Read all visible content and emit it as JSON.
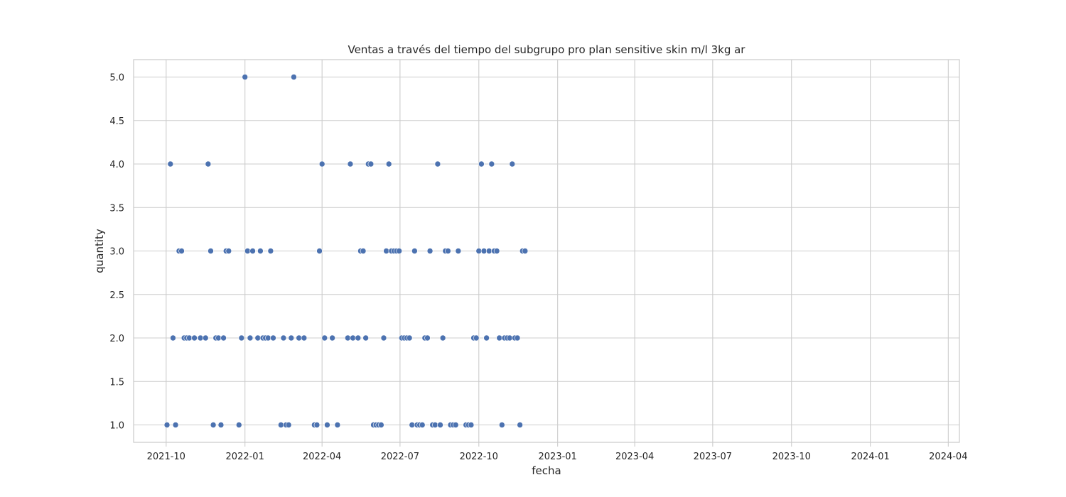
{
  "chart_data": {
    "type": "scatter",
    "title": "Ventas a través del tiempo del subgrupo pro plan sensitive skin m/l 3kg ar",
    "xlabel": "fecha",
    "ylabel": "quantity",
    "x_ticks": [
      "2021-10",
      "2022-01",
      "2022-04",
      "2022-07",
      "2022-10",
      "2023-01",
      "2023-04",
      "2023-07",
      "2023-10",
      "2024-01",
      "2024-04"
    ],
    "y_ticks": [
      "1.0",
      "1.5",
      "2.0",
      "2.5",
      "3.0",
      "3.5",
      "4.0",
      "4.5",
      "5.0"
    ],
    "xlim": [
      "2021-08-24",
      "2024-04-14"
    ],
    "ylim": [
      0.8,
      5.2
    ],
    "grid": true,
    "marker_color": "#4c72b0",
    "points": [
      {
        "x": "2021-10-02",
        "y": 1
      },
      {
        "x": "2021-10-06",
        "y": 4
      },
      {
        "x": "2021-10-09",
        "y": 2
      },
      {
        "x": "2021-10-12",
        "y": 1
      },
      {
        "x": "2021-10-16",
        "y": 3
      },
      {
        "x": "2021-10-19",
        "y": 3
      },
      {
        "x": "2021-10-22",
        "y": 2
      },
      {
        "x": "2021-10-25",
        "y": 2
      },
      {
        "x": "2021-10-28",
        "y": 2
      },
      {
        "x": "2021-11-03",
        "y": 2
      },
      {
        "x": "2021-11-10",
        "y": 2
      },
      {
        "x": "2021-11-16",
        "y": 2
      },
      {
        "x": "2021-11-19",
        "y": 4
      },
      {
        "x": "2021-11-22",
        "y": 3
      },
      {
        "x": "2021-11-25",
        "y": 1
      },
      {
        "x": "2021-11-28",
        "y": 2
      },
      {
        "x": "2021-12-01",
        "y": 2
      },
      {
        "x": "2021-12-04",
        "y": 1
      },
      {
        "x": "2021-12-07",
        "y": 2
      },
      {
        "x": "2021-12-10",
        "y": 3
      },
      {
        "x": "2021-12-13",
        "y": 3
      },
      {
        "x": "2021-12-25",
        "y": 1
      },
      {
        "x": "2021-12-28",
        "y": 2
      },
      {
        "x": "2022-01-01",
        "y": 5
      },
      {
        "x": "2022-01-04",
        "y": 3
      },
      {
        "x": "2022-01-07",
        "y": 2
      },
      {
        "x": "2022-01-10",
        "y": 3
      },
      {
        "x": "2022-01-16",
        "y": 2
      },
      {
        "x": "2022-01-19",
        "y": 3
      },
      {
        "x": "2022-01-22",
        "y": 2
      },
      {
        "x": "2022-01-25",
        "y": 2
      },
      {
        "x": "2022-01-28",
        "y": 2
      },
      {
        "x": "2022-01-31",
        "y": 3
      },
      {
        "x": "2022-02-03",
        "y": 2
      },
      {
        "x": "2022-02-12",
        "y": 1
      },
      {
        "x": "2022-02-15",
        "y": 2
      },
      {
        "x": "2022-02-18",
        "y": 1
      },
      {
        "x": "2022-02-21",
        "y": 1
      },
      {
        "x": "2022-02-24",
        "y": 2
      },
      {
        "x": "2022-02-27",
        "y": 5
      },
      {
        "x": "2022-03-05",
        "y": 2
      },
      {
        "x": "2022-03-11",
        "y": 2
      },
      {
        "x": "2022-03-23",
        "y": 1
      },
      {
        "x": "2022-03-26",
        "y": 1
      },
      {
        "x": "2022-03-29",
        "y": 3
      },
      {
        "x": "2022-04-01",
        "y": 4
      },
      {
        "x": "2022-04-04",
        "y": 2
      },
      {
        "x": "2022-04-07",
        "y": 1
      },
      {
        "x": "2022-04-13",
        "y": 2
      },
      {
        "x": "2022-04-19",
        "y": 1
      },
      {
        "x": "2022-05-01",
        "y": 2
      },
      {
        "x": "2022-05-04",
        "y": 4
      },
      {
        "x": "2022-05-07",
        "y": 2
      },
      {
        "x": "2022-05-13",
        "y": 2
      },
      {
        "x": "2022-05-16",
        "y": 3
      },
      {
        "x": "2022-05-19",
        "y": 3
      },
      {
        "x": "2022-05-22",
        "y": 2
      },
      {
        "x": "2022-05-25",
        "y": 4
      },
      {
        "x": "2022-05-28",
        "y": 4
      },
      {
        "x": "2022-05-31",
        "y": 1
      },
      {
        "x": "2022-06-03",
        "y": 1
      },
      {
        "x": "2022-06-06",
        "y": 1
      },
      {
        "x": "2022-06-09",
        "y": 1
      },
      {
        "x": "2022-06-12",
        "y": 2
      },
      {
        "x": "2022-06-15",
        "y": 3
      },
      {
        "x": "2022-06-18",
        "y": 4
      },
      {
        "x": "2022-06-21",
        "y": 3
      },
      {
        "x": "2022-06-24",
        "y": 3
      },
      {
        "x": "2022-06-27",
        "y": 3
      },
      {
        "x": "2022-06-30",
        "y": 3
      },
      {
        "x": "2022-07-03",
        "y": 2
      },
      {
        "x": "2022-07-06",
        "y": 2
      },
      {
        "x": "2022-07-09",
        "y": 2
      },
      {
        "x": "2022-07-12",
        "y": 2
      },
      {
        "x": "2022-07-15",
        "y": 1
      },
      {
        "x": "2022-07-18",
        "y": 3
      },
      {
        "x": "2022-07-21",
        "y": 1
      },
      {
        "x": "2022-07-24",
        "y": 1
      },
      {
        "x": "2022-07-27",
        "y": 1
      },
      {
        "x": "2022-07-30",
        "y": 2
      },
      {
        "x": "2022-08-02",
        "y": 2
      },
      {
        "x": "2022-08-05",
        "y": 3
      },
      {
        "x": "2022-08-08",
        "y": 1
      },
      {
        "x": "2022-08-11",
        "y": 1
      },
      {
        "x": "2022-08-14",
        "y": 4
      },
      {
        "x": "2022-08-17",
        "y": 1
      },
      {
        "x": "2022-08-20",
        "y": 2
      },
      {
        "x": "2022-08-23",
        "y": 3
      },
      {
        "x": "2022-08-26",
        "y": 3
      },
      {
        "x": "2022-08-29",
        "y": 1
      },
      {
        "x": "2022-09-01",
        "y": 1
      },
      {
        "x": "2022-09-04",
        "y": 1
      },
      {
        "x": "2022-09-07",
        "y": 3
      },
      {
        "x": "2022-09-16",
        "y": 1
      },
      {
        "x": "2022-09-19",
        "y": 1
      },
      {
        "x": "2022-09-22",
        "y": 1
      },
      {
        "x": "2022-09-25",
        "y": 2
      },
      {
        "x": "2022-09-28",
        "y": 2
      },
      {
        "x": "2022-10-01",
        "y": 3
      },
      {
        "x": "2022-10-04",
        "y": 4
      },
      {
        "x": "2022-10-07",
        "y": 3
      },
      {
        "x": "2022-10-10",
        "y": 2
      },
      {
        "x": "2022-10-13",
        "y": 3
      },
      {
        "x": "2022-10-16",
        "y": 4
      },
      {
        "x": "2022-10-19",
        "y": 3
      },
      {
        "x": "2022-10-22",
        "y": 3
      },
      {
        "x": "2022-10-25",
        "y": 2
      },
      {
        "x": "2022-10-28",
        "y": 1
      },
      {
        "x": "2022-10-31",
        "y": 2
      },
      {
        "x": "2022-11-03",
        "y": 2
      },
      {
        "x": "2022-11-06",
        "y": 2
      },
      {
        "x": "2022-11-09",
        "y": 4
      },
      {
        "x": "2022-11-12",
        "y": 2
      },
      {
        "x": "2022-11-15",
        "y": 2
      },
      {
        "x": "2022-11-18",
        "y": 1
      },
      {
        "x": "2022-11-21",
        "y": 3
      },
      {
        "x": "2022-11-24",
        "y": 3
      }
    ]
  }
}
